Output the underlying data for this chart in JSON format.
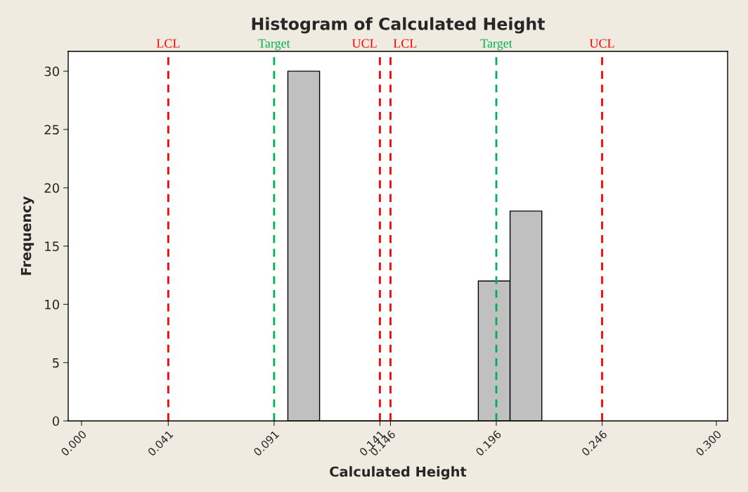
{
  "chart_data": {
    "type": "histogram",
    "title": "Histogram of Calculated Height",
    "xlabel": "Calculated Height",
    "ylabel": "Frequency",
    "bins": [
      0.0975,
      0.1125,
      0.1275,
      0.1425,
      0.1575,
      0.1725,
      0.1875,
      0.2025,
      0.2175
    ],
    "values": [
      30,
      0,
      0,
      0,
      0,
      0,
      12,
      18
    ],
    "color": "#c0c0c0",
    "xlim": [
      -0.0063,
      0.3053
    ],
    "xticks": [
      {
        "value": 0,
        "label": "0.000"
      },
      0.041,
      0.091,
      0.141,
      0.146,
      0.196,
      0.246,
      {
        "value": 0.3,
        "label": "0.300"
      }
    ],
    "ylim": [
      0,
      31.7
    ],
    "yticks": [
      0,
      5,
      10,
      15,
      20,
      25,
      30
    ],
    "grid": false,
    "legend": false,
    "ref_lines": [
      {
        "axis": "x",
        "value": 0.041,
        "label": "LCL",
        "color": "#ff0000",
        "line_style": "dashed"
      },
      {
        "axis": "x",
        "value": 0.091,
        "label": "Target",
        "color": "#00b050",
        "line_style": "dashed"
      },
      {
        "axis": "x",
        "value": 0.141,
        "label": "UCL",
        "color": "#ff0000",
        "line_style": "dashed"
      },
      {
        "axis": "x",
        "value": 0.146,
        "label": "LCL",
        "color": "#ff0000",
        "line_style": "dashed"
      },
      {
        "axis": "x",
        "value": 0.196,
        "label": "Target",
        "color": "#00b050",
        "line_style": "dashed"
      },
      {
        "axis": "x",
        "value": 0.246,
        "label": "UCL",
        "color": "#ff0000",
        "line_style": "dashed"
      }
    ]
  }
}
